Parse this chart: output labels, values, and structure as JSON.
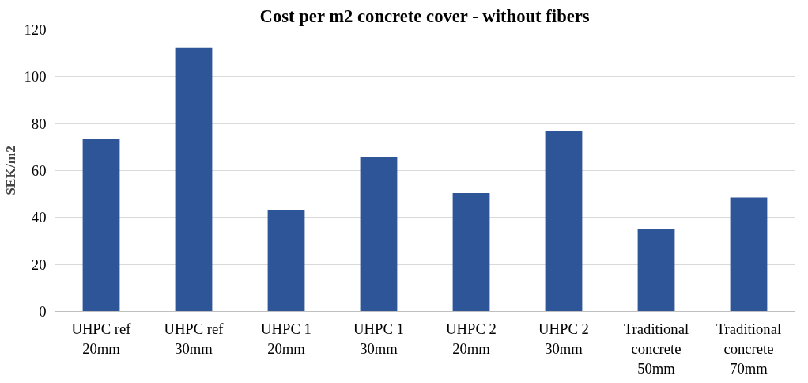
{
  "chart_data": {
    "type": "bar",
    "title": "Cost per m2 concrete cover - without fibers",
    "ylabel": "SEK/m2",
    "categories": [
      "UHPC ref 20mm",
      "UHPC ref 30mm",
      "UHPC 1 20mm",
      "UHPC 1 30mm",
      "UHPC 2 20mm",
      "UHPC 2 30mm",
      "Traditional concrete 50mm",
      "Traditional concrete 70mm"
    ],
    "values": [
      73.3,
      112.2,
      43,
      65.6,
      50.4,
      77,
      35.2,
      48.5
    ],
    "color": "#2e5597",
    "ylim": [
      0,
      120
    ],
    "yticks": [
      0,
      20,
      40,
      60,
      80,
      100,
      120
    ],
    "grid": "y"
  }
}
